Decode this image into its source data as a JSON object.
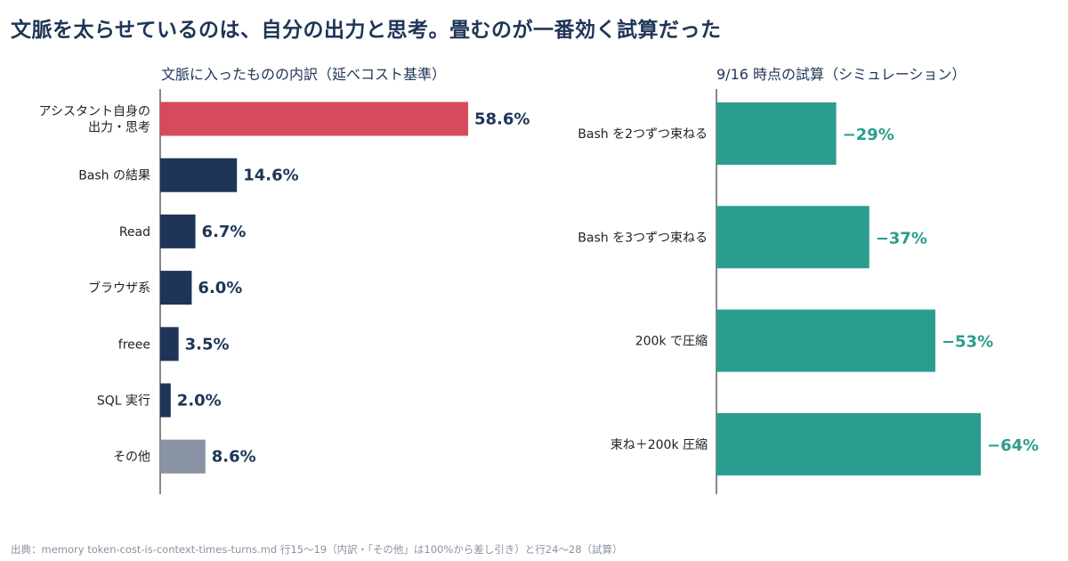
{
  "headline": "文脈を太らせているのは、自分の出力と思考。畳むのが一番効く試算だった",
  "footer": "出典：memory token-cost-is-context-times-turns.md 行15〜19（内訳・「その他」は100%から差し引き）と行24〜28（試算）",
  "colors": {
    "highlight": "#d64a5c",
    "navy": "#1f3557",
    "other": "#8a93a3",
    "teal": "#2a9d8f"
  },
  "chart_data": [
    {
      "type": "bar",
      "orientation": "horizontal",
      "title": "文脈に入ったものの内訳（延べコスト基準）",
      "categories": [
        "アシスタント自身の\n出力・思考",
        "Bash の結果",
        "Read",
        "ブラウザ系",
        "freee",
        "SQL 実行",
        "その他"
      ],
      "values": [
        58.6,
        14.6,
        6.7,
        6.0,
        3.5,
        2.0,
        8.6
      ],
      "value_labels": [
        "58.6%",
        "14.6%",
        "6.7%",
        "6.0%",
        "3.5%",
        "2.0%",
        "8.6%"
      ],
      "bar_colors": [
        "#d64a5c",
        "#1f3557",
        "#1f3557",
        "#1f3557",
        "#1f3557",
        "#1f3557",
        "#8a93a3"
      ],
      "xlim": [
        0,
        58.6
      ]
    },
    {
      "type": "bar",
      "orientation": "horizontal",
      "title": "9/16 時点の試算（シミュレーション）",
      "categories": [
        "Bash を2つずつ束ねる",
        "Bash を3つずつ束ねる",
        "200k で圧縮",
        "束ね＋200k 圧縮"
      ],
      "values": [
        -29,
        -37,
        -53,
        -64
      ],
      "value_labels": [
        "−29%",
        "−37%",
        "−53%",
        "−64%"
      ],
      "bar_color": "#2a9d8f",
      "xlim": [
        0,
        64
      ]
    }
  ]
}
